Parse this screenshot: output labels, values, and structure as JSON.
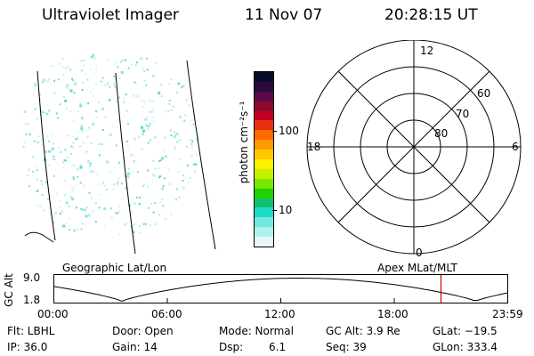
{
  "header": {
    "instrument": "Ultraviolet Imager",
    "date": "11 Nov 07",
    "time": "20:28:15 UT"
  },
  "colorbar": {
    "label": "photon cm⁻²s⁻¹",
    "ticks": [
      "100",
      "10"
    ],
    "colors": [
      "#0a0a2a",
      "#2a0a3a",
      "#5a0a4a",
      "#8a0a2a",
      "#c00020",
      "#e83010",
      "#ff6a00",
      "#ff9a00",
      "#ffc800",
      "#fff000",
      "#c8f000",
      "#78e800",
      "#20d000",
      "#10c070",
      "#20d8c8",
      "#70e8e0",
      "#b0f0f0",
      "#e8f8f8"
    ]
  },
  "polar": {
    "clock_labels": [
      "12",
      "18",
      "6",
      "0"
    ],
    "lat_labels": [
      "60",
      "70",
      "80"
    ]
  },
  "panel_labels": {
    "left": "Geographic Lat/Lon",
    "right": "Apex MLat/MLT"
  },
  "alt_plot": {
    "axis_label": "GC Alt",
    "y_ticks": [
      "9.0",
      "1.8"
    ],
    "x_ticks": [
      "00:00",
      "06:00",
      "12:00",
      "18:00",
      "23:59"
    ],
    "marker_hour": 20.47
  },
  "status": {
    "flt": "Flt: LBHL",
    "ip": "IP: 36.0",
    "door": "Door: Open",
    "gain": "Gain: 14",
    "mode": "Mode: Normal",
    "dsp_label": "Dsp:",
    "dsp_value": "6.1",
    "gc_alt": "GC Alt: 3.9 Re",
    "seq": "Seq: 39",
    "glat": "GLat: −19.5",
    "glon": "GLon: 333.4"
  }
}
